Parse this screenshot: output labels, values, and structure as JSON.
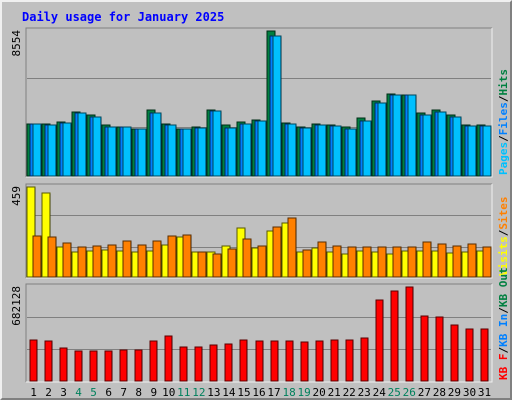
{
  "chart_data": {
    "type": "bar",
    "title": "Daily usage for January 2025",
    "categories": [
      "1",
      "2",
      "3",
      "4",
      "5",
      "6",
      "7",
      "8",
      "9",
      "10",
      "11",
      "12",
      "13",
      "14",
      "15",
      "16",
      "17",
      "18",
      "19",
      "20",
      "21",
      "22",
      "23",
      "24",
      "25",
      "26",
      "27",
      "28",
      "29",
      "30",
      "31"
    ],
    "weekend_days": [
      "4",
      "5",
      "11",
      "12",
      "18",
      "19",
      "25",
      "26"
    ],
    "panels": [
      {
        "id": "hits-files-pages",
        "ymax": 8554,
        "ymax_label": "8554",
        "side_labels": [
          "Pages",
          "Files",
          "Hits"
        ],
        "series": [
          {
            "name": "Hits",
            "color": "#008040",
            "values": [
              3080,
              3080,
              3200,
              3800,
              3570,
              2990,
              2900,
              2790,
              3920,
              3090,
              2800,
              2880,
              3910,
              2990,
              3190,
              3290,
              8554,
              3110,
              2890,
              3060,
              3010,
              2890,
              3400,
              4400,
              4850,
              4790,
              3690,
              3870,
              3620,
              2990,
              2990
            ]
          },
          {
            "name": "Files",
            "color": "#0080ff",
            "values": [
              3050,
              3000,
              3100,
              3700,
              3480,
              2900,
              2880,
              2750,
              3700,
              3000,
              2750,
              2820,
              3830,
              2850,
              3090,
              3250,
              8250,
              3050,
              2820,
              3000,
              2950,
              2790,
              3250,
              4300,
              4800,
              4750,
              3600,
              3750,
              3500,
              2940,
              2940
            ]
          },
          {
            "name": "Pages",
            "color": "#00c0ff",
            "values": [
              3050,
              3000,
              3100,
              3700,
              3480,
              2900,
              2880,
              2750,
              3700,
              3000,
              2750,
              2820,
              3830,
              2850,
              3090,
              3250,
              8250,
              3050,
              2820,
              3000,
              2950,
              2790,
              3250,
              4300,
              4800,
              4750,
              3600,
              3750,
              3500,
              2940,
              2940
            ]
          }
        ]
      },
      {
        "id": "visits-sites",
        "ymax": 459,
        "ymax_label": "459",
        "side_labels": [
          "Visits",
          "Sites"
        ],
        "series": [
          {
            "name": "Visits",
            "color": "#ffff00",
            "values": [
              459,
              428,
              155,
              125,
              135,
              140,
              135,
              130,
              135,
              165,
              205,
              130,
              130,
              160,
              250,
              150,
              235,
              275,
              130,
              150,
              125,
              115,
              135,
              125,
              115,
              135,
              135,
              135,
              120,
              125,
              135
            ]
          },
          {
            "name": "Sites",
            "color": "#ff8000",
            "values": [
              210,
              205,
              175,
              155,
              160,
              165,
              185,
              165,
              185,
              210,
              215,
              125,
              115,
              145,
              195,
              160,
              255,
              300,
              140,
              180,
              160,
              155,
              155,
              155,
              155,
              155,
              180,
              170,
              160,
              170,
              155
            ]
          }
        ]
      },
      {
        "id": "kbytes",
        "ymax": 682128,
        "ymax_label": "682128",
        "side_labels": [
          "KB F",
          "KB In",
          "KB Out"
        ],
        "series": [
          {
            "name": "KB F",
            "color": "#ff0000",
            "values": [
              295000,
              290000,
              240000,
              220000,
              220000,
              220000,
              225000,
              225000,
              290000,
              325000,
              245000,
              250000,
              260000,
              270000,
              295000,
              290000,
              290000,
              290000,
              280000,
              290000,
              295000,
              295000,
              315000,
              585000,
              650000,
              682128,
              470000,
              465000,
              410000,
              375000,
              380000
            ]
          }
        ]
      }
    ],
    "colors": {
      "background": "#c0c0c0",
      "plot_bg": "#c0c0c0",
      "title": "#0000ff",
      "weekday_label": "#000000",
      "weekend_label": "#00805c",
      "slash": "#000000",
      "side": {
        "Pages": "#00c0ff",
        "Files": "#0080ff",
        "Hits": "#008040",
        "Visits": "#ffff00",
        "Sites": "#ff8000",
        "KB F": "#ff0000",
        "KB In": "#0080ff",
        "KB Out": "#008040"
      }
    }
  }
}
